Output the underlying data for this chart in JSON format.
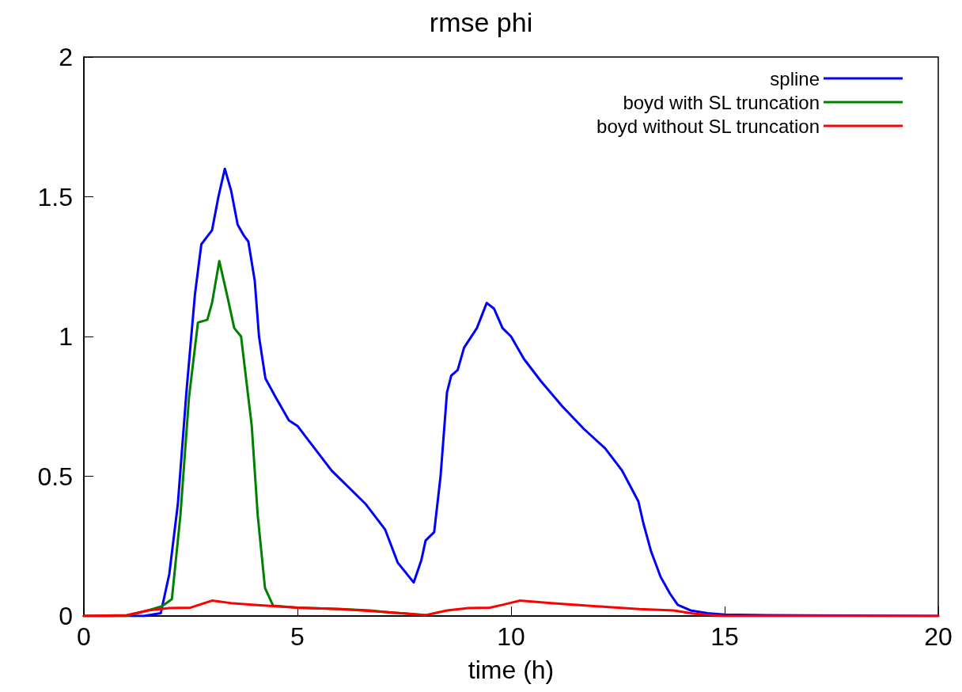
{
  "chart_data": {
    "type": "line",
    "title": "rmse phi",
    "xlabel": "time (h)",
    "xlim": [
      0,
      20
    ],
    "ylim": [
      0,
      2
    ],
    "xticks": [
      0,
      5,
      10,
      15,
      20
    ],
    "yticks": [
      0,
      0.5,
      1,
      1.5,
      2
    ],
    "grid": false,
    "legend": "top right",
    "marker": "none",
    "line_style": "solid",
    "series": [
      {
        "name": "spline",
        "color": "#0000ff",
        "x": [
          0,
          1,
          1.4,
          1.8,
          2.0,
          2.2,
          2.4,
          2.6,
          2.75,
          2.9,
          3.0,
          3.15,
          3.3,
          3.45,
          3.6,
          3.75,
          3.85,
          4.0,
          4.1,
          4.25,
          4.5,
          4.8,
          5.0,
          5.3,
          5.8,
          6.6,
          7.05,
          7.35,
          7.72,
          7.9,
          8.0,
          8.2,
          8.35,
          8.5,
          8.6,
          8.75,
          8.9,
          9.2,
          9.43,
          9.6,
          9.8,
          10.0,
          10.3,
          10.7,
          11.2,
          11.7,
          12.2,
          12.6,
          12.98,
          13.1,
          13.28,
          13.5,
          13.72,
          13.9,
          14.2,
          14.6,
          15,
          16,
          20
        ],
        "values": [
          0,
          0,
          0,
          0.01,
          0.15,
          0.4,
          0.8,
          1.15,
          1.33,
          1.36,
          1.38,
          1.5,
          1.6,
          1.52,
          1.4,
          1.36,
          1.34,
          1.2,
          1.0,
          0.85,
          0.78,
          0.7,
          0.68,
          0.62,
          0.52,
          0.4,
          0.31,
          0.19,
          0.12,
          0.2,
          0.27,
          0.3,
          0.5,
          0.8,
          0.86,
          0.88,
          0.96,
          1.03,
          1.12,
          1.1,
          1.03,
          1.0,
          0.92,
          0.84,
          0.75,
          0.67,
          0.6,
          0.52,
          0.41,
          0.33,
          0.23,
          0.14,
          0.08,
          0.04,
          0.02,
          0.01,
          0.005,
          0.003,
          0
        ]
      },
      {
        "name": "boyd with SL truncation",
        "color": "#008000",
        "x": [
          0,
          1,
          1.5,
          1.83,
          2.06,
          2.26,
          2.46,
          2.67,
          2.89,
          3.0,
          3.17,
          3.35,
          3.52,
          3.68,
          3.93,
          4.07,
          4.24,
          4.43,
          5,
          6,
          6.7,
          7,
          8
        ],
        "values": [
          0,
          0,
          0.02,
          0.035,
          0.06,
          0.36,
          0.78,
          1.05,
          1.06,
          1.12,
          1.27,
          1.15,
          1.03,
          1.0,
          0.68,
          0.36,
          0.1,
          0.037,
          0.03,
          0.025,
          0.02,
          0.015,
          0.003
        ]
      },
      {
        "name": "boyd without SL truncation",
        "color": "#ff0000",
        "x": [
          0,
          1,
          1.5,
          2,
          2.5,
          3.0,
          3.5,
          4,
          5,
          6,
          7,
          8,
          8.5,
          9,
          9.5,
          9.8,
          10.2,
          10.6,
          11,
          12,
          13,
          13.8,
          14.3,
          14.8,
          15,
          20
        ],
        "values": [
          0,
          0.003,
          0.02,
          0.028,
          0.03,
          0.055,
          0.045,
          0.04,
          0.03,
          0.025,
          0.015,
          0.003,
          0.02,
          0.028,
          0.03,
          0.04,
          0.055,
          0.05,
          0.045,
          0.035,
          0.025,
          0.02,
          0.008,
          0.002,
          0,
          0
        ]
      }
    ]
  }
}
